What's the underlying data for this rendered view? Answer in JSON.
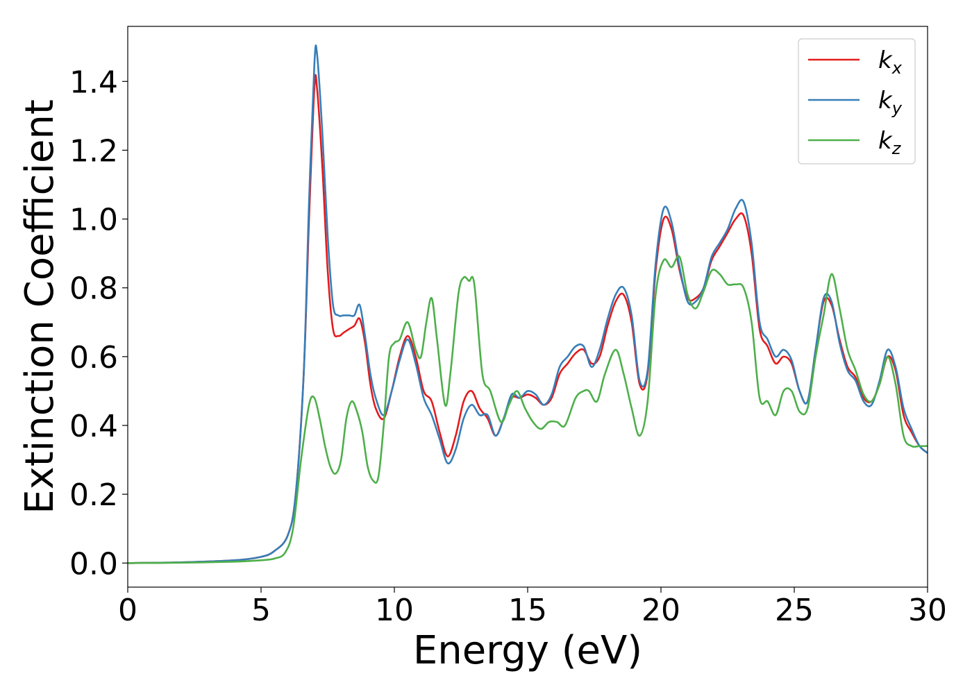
{
  "chart_data": {
    "type": "line",
    "title": "",
    "xlabel": "Energy (eV)",
    "ylabel": "Extinction Coefficient",
    "xlim": [
      0,
      30
    ],
    "ylim": [
      -0.07,
      1.56
    ],
    "xticks": [
      0,
      5,
      10,
      15,
      20,
      25,
      30
    ],
    "xtick_labels": [
      "0",
      "5",
      "10",
      "15",
      "20",
      "25",
      "30"
    ],
    "yticks": [
      0.0,
      0.2,
      0.4,
      0.6,
      0.8,
      1.0,
      1.2,
      1.4
    ],
    "ytick_labels": [
      "0.0",
      "0.2",
      "0.4",
      "0.6",
      "0.8",
      "1.0",
      "1.2",
      "1.4"
    ],
    "grid": false,
    "legend_position": "top-right",
    "series": [
      {
        "name": "k",
        "subscript": "x",
        "color": "#e41a1c",
        "points": [
          [
            0,
            0.0
          ],
          [
            2,
            0.002
          ],
          [
            4,
            0.008
          ],
          [
            5,
            0.018
          ],
          [
            5.5,
            0.035
          ],
          [
            6,
            0.08
          ],
          [
            6.3,
            0.2
          ],
          [
            6.6,
            0.55
          ],
          [
            6.8,
            1.0
          ],
          [
            7.0,
            1.38
          ],
          [
            7.1,
            1.38
          ],
          [
            7.3,
            1.15
          ],
          [
            7.5,
            0.85
          ],
          [
            7.7,
            0.68
          ],
          [
            7.9,
            0.66
          ],
          [
            8.1,
            0.67
          ],
          [
            8.3,
            0.68
          ],
          [
            8.5,
            0.69
          ],
          [
            8.7,
            0.71
          ],
          [
            8.9,
            0.64
          ],
          [
            9.1,
            0.52
          ],
          [
            9.3,
            0.45
          ],
          [
            9.6,
            0.42
          ],
          [
            9.9,
            0.5
          ],
          [
            10.2,
            0.6
          ],
          [
            10.5,
            0.66
          ],
          [
            10.8,
            0.6
          ],
          [
            11.1,
            0.5
          ],
          [
            11.4,
            0.47
          ],
          [
            11.7,
            0.38
          ],
          [
            12.0,
            0.31
          ],
          [
            12.3,
            0.37
          ],
          [
            12.6,
            0.47
          ],
          [
            12.9,
            0.5
          ],
          [
            13.2,
            0.45
          ],
          [
            13.5,
            0.42
          ],
          [
            13.8,
            0.37
          ],
          [
            14.1,
            0.42
          ],
          [
            14.4,
            0.48
          ],
          [
            14.7,
            0.48
          ],
          [
            15.0,
            0.49
          ],
          [
            15.3,
            0.48
          ],
          [
            15.6,
            0.46
          ],
          [
            15.9,
            0.48
          ],
          [
            16.2,
            0.55
          ],
          [
            16.5,
            0.58
          ],
          [
            16.8,
            0.61
          ],
          [
            17.1,
            0.62
          ],
          [
            17.4,
            0.58
          ],
          [
            17.7,
            0.6
          ],
          [
            18.0,
            0.69
          ],
          [
            18.3,
            0.76
          ],
          [
            18.6,
            0.78
          ],
          [
            18.9,
            0.7
          ],
          [
            19.2,
            0.52
          ],
          [
            19.5,
            0.55
          ],
          [
            19.8,
            0.85
          ],
          [
            20.1,
            1.0
          ],
          [
            20.4,
            0.97
          ],
          [
            20.7,
            0.85
          ],
          [
            21.0,
            0.77
          ],
          [
            21.3,
            0.77
          ],
          [
            21.6,
            0.8
          ],
          [
            21.9,
            0.88
          ],
          [
            22.2,
            0.92
          ],
          [
            22.5,
            0.96
          ],
          [
            22.8,
            1.0
          ],
          [
            23.1,
            1.01
          ],
          [
            23.4,
            0.9
          ],
          [
            23.7,
            0.68
          ],
          [
            24.0,
            0.63
          ],
          [
            24.3,
            0.58
          ],
          [
            24.6,
            0.6
          ],
          [
            24.9,
            0.58
          ],
          [
            25.2,
            0.5
          ],
          [
            25.5,
            0.47
          ],
          [
            25.8,
            0.62
          ],
          [
            26.1,
            0.76
          ],
          [
            26.4,
            0.75
          ],
          [
            26.7,
            0.65
          ],
          [
            27.0,
            0.57
          ],
          [
            27.3,
            0.54
          ],
          [
            27.6,
            0.48
          ],
          [
            27.9,
            0.47
          ],
          [
            28.2,
            0.52
          ],
          [
            28.5,
            0.6
          ],
          [
            28.8,
            0.56
          ],
          [
            29.1,
            0.43
          ],
          [
            29.4,
            0.38
          ],
          [
            29.7,
            0.34
          ],
          [
            30.0,
            0.32
          ]
        ]
      },
      {
        "name": "k",
        "subscript": "y",
        "color": "#377eb8",
        "points": [
          [
            0,
            0.0
          ],
          [
            2,
            0.002
          ],
          [
            4,
            0.008
          ],
          [
            5,
            0.018
          ],
          [
            5.5,
            0.035
          ],
          [
            6,
            0.08
          ],
          [
            6.3,
            0.2
          ],
          [
            6.6,
            0.55
          ],
          [
            6.8,
            1.05
          ],
          [
            7.0,
            1.45
          ],
          [
            7.1,
            1.48
          ],
          [
            7.3,
            1.25
          ],
          [
            7.5,
            0.95
          ],
          [
            7.7,
            0.75
          ],
          [
            7.9,
            0.72
          ],
          [
            8.1,
            0.72
          ],
          [
            8.3,
            0.72
          ],
          [
            8.5,
            0.72
          ],
          [
            8.7,
            0.75
          ],
          [
            8.9,
            0.66
          ],
          [
            9.1,
            0.55
          ],
          [
            9.3,
            0.48
          ],
          [
            9.6,
            0.43
          ],
          [
            9.9,
            0.5
          ],
          [
            10.2,
            0.59
          ],
          [
            10.5,
            0.65
          ],
          [
            10.8,
            0.58
          ],
          [
            11.1,
            0.48
          ],
          [
            11.4,
            0.43
          ],
          [
            11.7,
            0.36
          ],
          [
            12.0,
            0.29
          ],
          [
            12.3,
            0.33
          ],
          [
            12.6,
            0.42
          ],
          [
            12.9,
            0.46
          ],
          [
            13.2,
            0.43
          ],
          [
            13.5,
            0.43
          ],
          [
            13.8,
            0.37
          ],
          [
            14.1,
            0.42
          ],
          [
            14.4,
            0.49
          ],
          [
            14.7,
            0.48
          ],
          [
            15.0,
            0.5
          ],
          [
            15.3,
            0.49
          ],
          [
            15.6,
            0.46
          ],
          [
            15.9,
            0.49
          ],
          [
            16.2,
            0.57
          ],
          [
            16.5,
            0.6
          ],
          [
            16.8,
            0.63
          ],
          [
            17.1,
            0.63
          ],
          [
            17.4,
            0.57
          ],
          [
            17.7,
            0.62
          ],
          [
            18.0,
            0.71
          ],
          [
            18.3,
            0.78
          ],
          [
            18.6,
            0.8
          ],
          [
            18.9,
            0.72
          ],
          [
            19.2,
            0.53
          ],
          [
            19.5,
            0.56
          ],
          [
            19.8,
            0.87
          ],
          [
            20.1,
            1.03
          ],
          [
            20.4,
            0.99
          ],
          [
            20.7,
            0.86
          ],
          [
            21.0,
            0.76
          ],
          [
            21.3,
            0.76
          ],
          [
            21.6,
            0.8
          ],
          [
            21.9,
            0.89
          ],
          [
            22.2,
            0.93
          ],
          [
            22.5,
            0.97
          ],
          [
            22.8,
            1.03
          ],
          [
            23.1,
            1.05
          ],
          [
            23.4,
            0.93
          ],
          [
            23.7,
            0.7
          ],
          [
            24.0,
            0.65
          ],
          [
            24.3,
            0.6
          ],
          [
            24.6,
            0.62
          ],
          [
            24.9,
            0.59
          ],
          [
            25.2,
            0.5
          ],
          [
            25.5,
            0.47
          ],
          [
            25.8,
            0.62
          ],
          [
            26.1,
            0.77
          ],
          [
            26.4,
            0.76
          ],
          [
            26.7,
            0.64
          ],
          [
            27.0,
            0.56
          ],
          [
            27.3,
            0.53
          ],
          [
            27.6,
            0.47
          ],
          [
            27.9,
            0.46
          ],
          [
            28.2,
            0.53
          ],
          [
            28.5,
            0.62
          ],
          [
            28.8,
            0.57
          ],
          [
            29.1,
            0.45
          ],
          [
            29.4,
            0.39
          ],
          [
            29.7,
            0.34
          ],
          [
            30.0,
            0.32
          ]
        ]
      },
      {
        "name": "k",
        "subscript": "z",
        "color": "#4daf4a",
        "points": [
          [
            0,
            0.0
          ],
          [
            2,
            0.001
          ],
          [
            4,
            0.004
          ],
          [
            5,
            0.008
          ],
          [
            5.5,
            0.013
          ],
          [
            5.9,
            0.03
          ],
          [
            6.2,
            0.1
          ],
          [
            6.5,
            0.3
          ],
          [
            6.8,
            0.46
          ],
          [
            7.0,
            0.48
          ],
          [
            7.2,
            0.42
          ],
          [
            7.4,
            0.34
          ],
          [
            7.6,
            0.28
          ],
          [
            7.8,
            0.26
          ],
          [
            8.0,
            0.3
          ],
          [
            8.2,
            0.42
          ],
          [
            8.4,
            0.47
          ],
          [
            8.6,
            0.44
          ],
          [
            8.8,
            0.38
          ],
          [
            9.0,
            0.28
          ],
          [
            9.2,
            0.24
          ],
          [
            9.4,
            0.25
          ],
          [
            9.6,
            0.4
          ],
          [
            9.8,
            0.6
          ],
          [
            10.0,
            0.64
          ],
          [
            10.2,
            0.65
          ],
          [
            10.5,
            0.7
          ],
          [
            10.8,
            0.62
          ],
          [
            11.0,
            0.6
          ],
          [
            11.2,
            0.7
          ],
          [
            11.4,
            0.77
          ],
          [
            11.6,
            0.65
          ],
          [
            11.9,
            0.46
          ],
          [
            12.1,
            0.55
          ],
          [
            12.4,
            0.78
          ],
          [
            12.6,
            0.83
          ],
          [
            12.8,
            0.82
          ],
          [
            13.0,
            0.81
          ],
          [
            13.3,
            0.55
          ],
          [
            13.6,
            0.5
          ],
          [
            14.0,
            0.41
          ],
          [
            14.3,
            0.46
          ],
          [
            14.6,
            0.5
          ],
          [
            14.9,
            0.45
          ],
          [
            15.2,
            0.41
          ],
          [
            15.5,
            0.39
          ],
          [
            15.8,
            0.41
          ],
          [
            16.1,
            0.41
          ],
          [
            16.4,
            0.4
          ],
          [
            16.8,
            0.48
          ],
          [
            17.1,
            0.5
          ],
          [
            17.3,
            0.5
          ],
          [
            17.6,
            0.47
          ],
          [
            17.9,
            0.55
          ],
          [
            18.3,
            0.62
          ],
          [
            18.6,
            0.55
          ],
          [
            18.9,
            0.45
          ],
          [
            19.2,
            0.37
          ],
          [
            19.5,
            0.47
          ],
          [
            19.8,
            0.78
          ],
          [
            20.1,
            0.88
          ],
          [
            20.4,
            0.86
          ],
          [
            20.7,
            0.89
          ],
          [
            21.0,
            0.78
          ],
          [
            21.3,
            0.74
          ],
          [
            21.6,
            0.79
          ],
          [
            21.9,
            0.85
          ],
          [
            22.2,
            0.84
          ],
          [
            22.5,
            0.81
          ],
          [
            22.8,
            0.81
          ],
          [
            23.1,
            0.8
          ],
          [
            23.4,
            0.7
          ],
          [
            23.7,
            0.48
          ],
          [
            24.0,
            0.47
          ],
          [
            24.3,
            0.43
          ],
          [
            24.6,
            0.5
          ],
          [
            24.9,
            0.5
          ],
          [
            25.2,
            0.44
          ],
          [
            25.5,
            0.45
          ],
          [
            25.8,
            0.6
          ],
          [
            26.1,
            0.72
          ],
          [
            26.4,
            0.84
          ],
          [
            26.7,
            0.74
          ],
          [
            27.0,
            0.62
          ],
          [
            27.3,
            0.56
          ],
          [
            27.6,
            0.49
          ],
          [
            27.9,
            0.47
          ],
          [
            28.2,
            0.52
          ],
          [
            28.5,
            0.6
          ],
          [
            28.8,
            0.52
          ],
          [
            29.1,
            0.37
          ],
          [
            29.4,
            0.34
          ],
          [
            29.7,
            0.34
          ],
          [
            30.0,
            0.34
          ]
        ]
      }
    ]
  }
}
